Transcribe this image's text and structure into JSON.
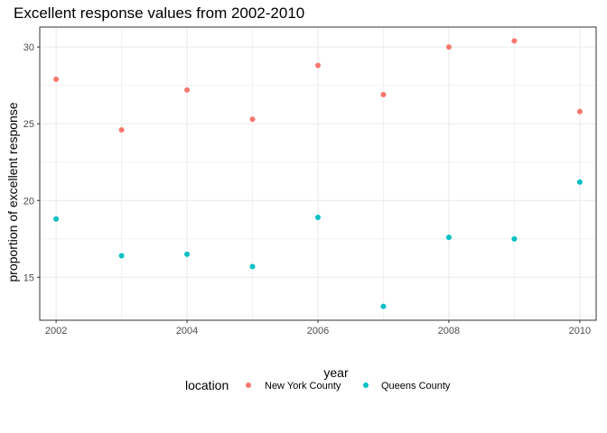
{
  "chart_data": {
    "type": "scatter",
    "title": "Excellent response values from 2002-2010",
    "xlabel": "year",
    "ylabel": "proportion of excellent response",
    "xlim": [
      2001.75,
      2010.25
    ],
    "ylim": [
      12.2,
      31.3
    ],
    "x_ticks": [
      2002,
      2004,
      2006,
      2008,
      2010
    ],
    "y_ticks": [
      15,
      20,
      25,
      30
    ],
    "grid": true,
    "legend": {
      "title": "location",
      "position": "bottom"
    },
    "series": [
      {
        "name": "New York County",
        "color": "#F8766D",
        "x": [
          2002,
          2003,
          2004,
          2005,
          2006,
          2007,
          2008,
          2009,
          2010
        ],
        "y": [
          27.9,
          24.6,
          27.2,
          25.3,
          28.8,
          26.9,
          30.0,
          30.4,
          25.8
        ]
      },
      {
        "name": "Queens County",
        "color": "#00BFC4",
        "x": [
          2002,
          2003,
          2004,
          2005,
          2006,
          2007,
          2008,
          2009,
          2010
        ],
        "y": [
          18.8,
          16.4,
          16.5,
          15.7,
          18.9,
          13.1,
          17.6,
          17.5,
          21.2
        ]
      }
    ]
  }
}
